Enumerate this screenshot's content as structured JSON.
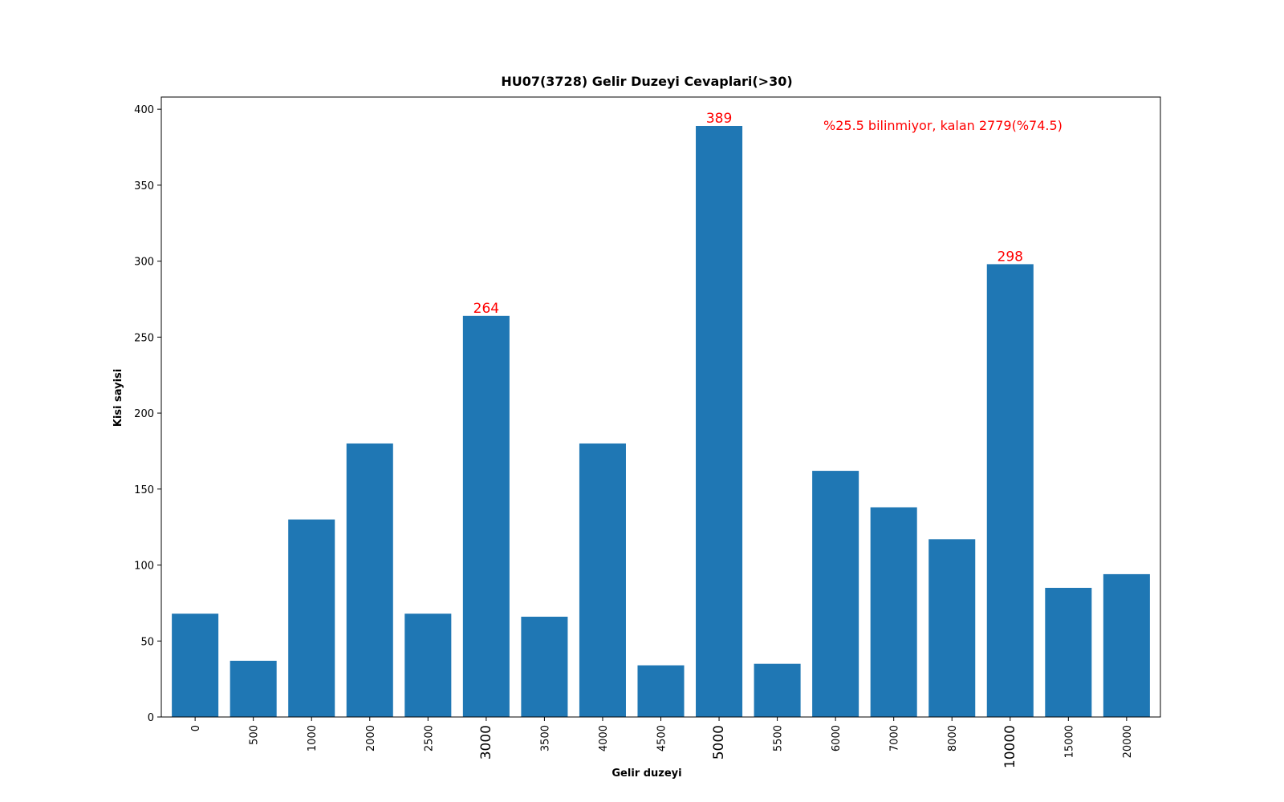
{
  "chart_data": {
    "type": "bar",
    "title": "HU07(3728) Gelir Duzeyi Cevaplari(>30)",
    "xlabel": "Gelir duzeyi",
    "ylabel": "Kisi sayisi",
    "ylim": [
      0,
      408
    ],
    "yticks": [
      0,
      50,
      100,
      150,
      200,
      250,
      300,
      350,
      400
    ],
    "grid": false,
    "categories": [
      "0",
      "500",
      "1000",
      "2000",
      "2500",
      "3000",
      "3500",
      "4000",
      "4500",
      "5000",
      "5500",
      "6000",
      "7000",
      "8000",
      "10000",
      "15000",
      "20000"
    ],
    "values": [
      68,
      37,
      130,
      180,
      68,
      264,
      66,
      180,
      34,
      389,
      35,
      162,
      138,
      117,
      298,
      85,
      94
    ],
    "highlighted_categories": [
      "3000",
      "5000",
      "10000"
    ],
    "bar_labels": [
      {
        "category": "3000",
        "text": "264"
      },
      {
        "category": "5000",
        "text": "389"
      },
      {
        "category": "10000",
        "text": "298"
      }
    ],
    "annotation": "%25.5 bilinmiyor, kalan 2779(%74.5)",
    "colors": {
      "bar": "#1f77b4",
      "highlight": "#ff0000",
      "axis": "#000000"
    }
  }
}
